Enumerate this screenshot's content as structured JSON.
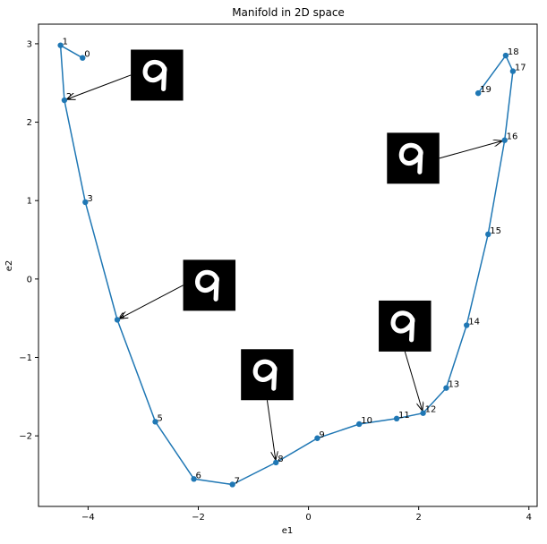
{
  "chart_data": {
    "type": "line",
    "title": "Manifold in 2D space",
    "xlabel": "e1",
    "ylabel": "e2",
    "xlim": [
      -4.9,
      4.15
    ],
    "ylim": [
      -2.9,
      3.25
    ],
    "xticks": [
      -4,
      -2,
      0,
      2,
      4
    ],
    "yticks": [
      -2,
      -1,
      0,
      1,
      2,
      3
    ],
    "xtick_labels": [
      "−4",
      "−2",
      "0",
      "2",
      "4"
    ],
    "ytick_labels": [
      "−2",
      "−1",
      "0",
      "1",
      "2",
      "3"
    ],
    "grid": false,
    "line_color": "#1f77b4",
    "marker": "circle",
    "points": [
      {
        "label": "0",
        "x": -4.1,
        "y": 2.82
      },
      {
        "label": "1",
        "x": -4.5,
        "y": 2.98
      },
      {
        "label": "2",
        "x": -4.43,
        "y": 2.28
      },
      {
        "label": "3",
        "x": -4.05,
        "y": 0.98
      },
      {
        "label": "4",
        "x": -3.47,
        "y": -0.52
      },
      {
        "label": "5",
        "x": -2.78,
        "y": -1.82
      },
      {
        "label": "6",
        "x": -2.08,
        "y": -2.55
      },
      {
        "label": "7",
        "x": -1.38,
        "y": -2.62
      },
      {
        "label": "8",
        "x": -0.59,
        "y": -2.34
      },
      {
        "label": "9",
        "x": 0.16,
        "y": -2.03
      },
      {
        "label": "10",
        "x": 0.92,
        "y": -1.85
      },
      {
        "label": "11",
        "x": 1.6,
        "y": -1.78
      },
      {
        "label": "12",
        "x": 2.08,
        "y": -1.71
      },
      {
        "label": "13",
        "x": 2.5,
        "y": -1.39
      },
      {
        "label": "14",
        "x": 2.87,
        "y": -0.59
      },
      {
        "label": "15",
        "x": 3.26,
        "y": 0.57
      },
      {
        "label": "16",
        "x": 3.56,
        "y": 1.77
      },
      {
        "label": "17",
        "x": 3.71,
        "y": 2.65
      },
      {
        "label": "18",
        "x": 3.58,
        "y": 2.85
      },
      {
        "label": "19",
        "x": 3.08,
        "y": 2.37
      }
    ],
    "annotations": [
      {
        "target": "2",
        "image": "digit-9",
        "box_center": [
          -2.75,
          2.6
        ],
        "box_size": [
          0.95,
          0.65
        ]
      },
      {
        "target": "4",
        "image": "digit-9",
        "box_center": [
          -1.8,
          -0.08
        ],
        "box_size": [
          0.95,
          0.65
        ]
      },
      {
        "target": "8",
        "image": "digit-9",
        "box_center": [
          -0.75,
          -1.22
        ],
        "box_size": [
          0.95,
          0.65
        ]
      },
      {
        "target": "12",
        "image": "digit-9",
        "box_center": [
          1.75,
          -0.6
        ],
        "box_size": [
          0.95,
          0.65
        ]
      },
      {
        "target": "16",
        "image": "digit-9",
        "box_center": [
          1.9,
          1.54
        ],
        "box_size": [
          0.95,
          0.65
        ]
      }
    ]
  }
}
